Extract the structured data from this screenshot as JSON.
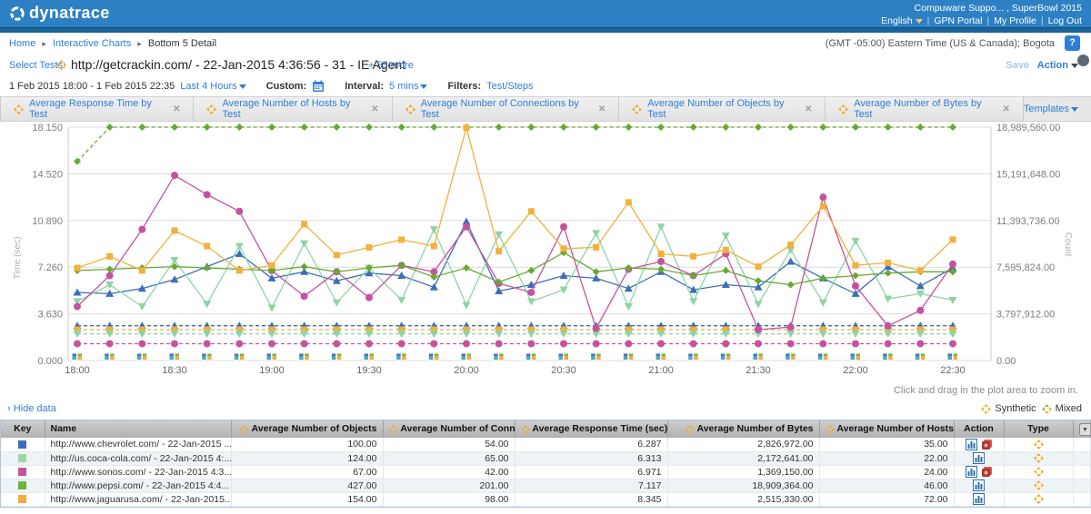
{
  "header": {
    "logo_text": "dynatrace",
    "account": "Compuware Suppo... , SuperBowl 2015",
    "language": "English",
    "links": [
      "GPN Portal",
      "My Profile",
      "Log Out"
    ]
  },
  "breadcrumb": {
    "items": [
      "Home",
      "Interactive Charts",
      "Bottom 5 Detail"
    ],
    "timezone": "(GMT -05:00) Eastern Time (US & Canada); Bogota",
    "help_label": "?"
  },
  "test_selector": {
    "label": "Select Tests:",
    "test_name": "http://getcrackin.com/ - 22-Jan-2015 4:36:56 - 31 - IE Agent",
    "more_link": "+ 55 more",
    "save_label": "Save",
    "action_label": "Action"
  },
  "time_controls": {
    "range": "1 Feb 2015 18:00 - 1 Feb 2015 22:35",
    "preset": "Last 4 Hours",
    "custom_label": "Custom:",
    "interval_label": "Interval:",
    "interval_value": "5 mins",
    "filters_label": "Filters:",
    "filters_value": "Test/Steps"
  },
  "tabs": [
    {
      "label": "Average Response Time by Test"
    },
    {
      "label": "Average Number of Hosts by Test"
    },
    {
      "label": "Average Number of Connections by Test"
    },
    {
      "label": "Average Number of Objects by Test"
    },
    {
      "label": "Average Number of Bytes by Test"
    }
  ],
  "templates_label": "Templates",
  "ui": {
    "close_glyph": "✕",
    "sort_asc_glyph": "▲",
    "breadcrumb_sep": "▸"
  },
  "chart_hint": "Click and drag in the plot area to zoom in.",
  "hide_data_label": "› Hide data",
  "legend": {
    "synthetic": "Synthetic",
    "mixed": "Mixed"
  },
  "chart_data": {
    "type": "line",
    "x": {
      "labels": [
        "18:00",
        "18:30",
        "19:00",
        "19:30",
        "20:00",
        "20:30",
        "21:00",
        "21:30",
        "22:00",
        "22:30"
      ],
      "start_min": 0,
      "end_min": 270,
      "point_step_min": 10
    },
    "y_left": {
      "label": "Time (sec)",
      "ticks": [
        "0.000",
        "3.630",
        "7.260",
        "10.890",
        "14.520",
        "18.150"
      ],
      "max": 18.15
    },
    "y_right": {
      "label": "Count",
      "ticks": [
        "0.00",
        "3,797,912.00",
        "7,595,824.00",
        "11,393,736.00",
        "15,191,648.00",
        "18,989,560.00"
      ],
      "max": 18989560
    },
    "response_time_series": [
      {
        "name": "http://www.chevrolet.com/",
        "color": "#3b6fb6",
        "marker": "triangle-up",
        "values": [
          5.3,
          5.2,
          5.6,
          6.3,
          7.3,
          8.3,
          6.4,
          6.9,
          6.2,
          6.8,
          6.6,
          5.7,
          10.8,
          5.4,
          5.9,
          6.6,
          6.4,
          5.6,
          6.9,
          5.5,
          5.9,
          5.7,
          7.7,
          6.4,
          5.2,
          7.3,
          5.8,
          7.2
        ]
      },
      {
        "name": "http://us.coca-cola.com/",
        "color": "#8fd3a6",
        "marker": "triangle-down",
        "values": [
          4.6,
          5.9,
          4.2,
          7.8,
          4.4,
          8.9,
          4.1,
          9.1,
          4.5,
          7.2,
          4.7,
          10.2,
          4.3,
          9.8,
          4.6,
          5.5,
          9.9,
          4.2,
          10.4,
          4.6,
          9.7,
          4.4,
          8.6,
          4.5,
          9.3,
          4.8,
          5.2,
          4.7
        ]
      },
      {
        "name": "http://www.sonos.com/",
        "color": "#c4539e",
        "marker": "circle",
        "values": [
          4.2,
          6.6,
          10.2,
          14.4,
          12.9,
          11.6,
          7.0,
          5.0,
          6.9,
          4.9,
          7.4,
          6.9,
          10.4,
          6.0,
          5.3,
          10.4,
          2.5,
          7.1,
          7.7,
          6.6,
          8.3,
          2.4,
          2.6,
          12.7,
          5.8,
          2.7,
          3.9,
          7.5
        ]
      },
      {
        "name": "http://www.pepsi.com/",
        "color": "#68a832",
        "marker": "diamond",
        "values": [
          7.0,
          7.1,
          7.2,
          7.3,
          7.2,
          7.1,
          7.0,
          7.3,
          6.9,
          7.2,
          7.4,
          6.5,
          7.2,
          6.1,
          7.0,
          8.4,
          6.9,
          7.2,
          7.1,
          6.6,
          7.0,
          6.2,
          5.9,
          6.4,
          6.6,
          6.8,
          6.9,
          6.9
        ]
      },
      {
        "name": "http://www.jaguarusa.com/",
        "color": "#f2b03c",
        "marker": "square",
        "values": [
          7.2,
          8.1,
          7.0,
          10.1,
          8.9,
          7.0,
          7.4,
          10.6,
          8.2,
          8.8,
          9.4,
          8.9,
          18.1,
          8.5,
          11.6,
          8.7,
          8.8,
          12.3,
          8.3,
          8.1,
          8.6,
          7.3,
          9.0,
          12.0,
          7.4,
          7.6,
          7.0,
          9.4
        ]
      }
    ],
    "bytes_series": [
      {
        "name": "http://www.pepsi.com/",
        "color": "#68a832",
        "marker": "diamond",
        "value": 18989560,
        "first_value": 16200000
      },
      {
        "name": "http://www.chevrolet.com/",
        "color": "#3b6fb6",
        "marker": "triangle-up",
        "value": 2826972
      },
      {
        "name": "http://www.jaguarusa.com/",
        "color": "#f2b03c",
        "marker": "square",
        "value": 2515330
      },
      {
        "name": "http://us.coca-cola.com/",
        "color": "#8fd3a6",
        "marker": "triangle-down",
        "value": 2172641
      },
      {
        "name": "http://www.sonos.com/",
        "color": "#c4539e",
        "marker": "circle",
        "value": 1369150
      }
    ]
  },
  "table": {
    "columns": [
      {
        "label": "Key",
        "icon": false,
        "align": "ac"
      },
      {
        "label": "Name",
        "icon": false,
        "align": "al"
      },
      {
        "label": "Average Number of Objects",
        "icon": true,
        "align": "ar"
      },
      {
        "label": "Average Number of Connections",
        "icon": true,
        "align": "ar"
      },
      {
        "label": "Average Response Time (sec)",
        "icon": true,
        "sort": "asc",
        "align": "ar"
      },
      {
        "label": "Average Number of Bytes",
        "icon": true,
        "align": "ar"
      },
      {
        "label": "Average Number of Hosts",
        "icon": true,
        "align": "ar"
      },
      {
        "label": "Action",
        "icon": false,
        "align": "ac"
      },
      {
        "label": "Type",
        "icon": false,
        "align": "ac"
      }
    ],
    "rows": [
      {
        "key_color": "#3b6fb6",
        "name": "http://www.chevrolet.com/ - 22-Jan-2015 ...",
        "objects": "100.00",
        "connections": "54.00",
        "response_time": "6.287",
        "bytes": "2,826,972.00",
        "hosts": "35.00",
        "actions": [
          "chart",
          "export"
        ],
        "type": "synthetic"
      },
      {
        "key_color": "#9fd6a9",
        "name": "http://us.coca-cola.com/ - 22-Jan-2015 4:...",
        "objects": "124.00",
        "connections": "65.00",
        "response_time": "6.313",
        "bytes": "2,172,641.00",
        "hosts": "22.00",
        "actions": [
          "chart"
        ],
        "type": "synthetic"
      },
      {
        "key_color": "#c4539e",
        "name": "http://www.sonos.com/ - 22-Jan-2015 4:3...",
        "objects": "67.00",
        "connections": "42.00",
        "response_time": "6.971",
        "bytes": "1,369,150.00",
        "hosts": "24.00",
        "actions": [
          "chart",
          "export"
        ],
        "type": "synthetic"
      },
      {
        "key_color": "#6db33f",
        "name": "http://www.pepsi.com/ - 22-Jan-2015 4:4...",
        "objects": "427.00",
        "connections": "201.00",
        "response_time": "7.117",
        "bytes": "18,909,364.00",
        "hosts": "46.00",
        "actions": [
          "chart"
        ],
        "type": "synthetic"
      },
      {
        "key_color": "#f0ad3e",
        "name": "http://www.jaguarusa.com/ - 22-Jan-2015...",
        "objects": "154.00",
        "connections": "98.00",
        "response_time": "8.345",
        "bytes": "2,515,330.00",
        "hosts": "72.00",
        "actions": [
          "chart"
        ],
        "type": "synthetic"
      }
    ]
  }
}
